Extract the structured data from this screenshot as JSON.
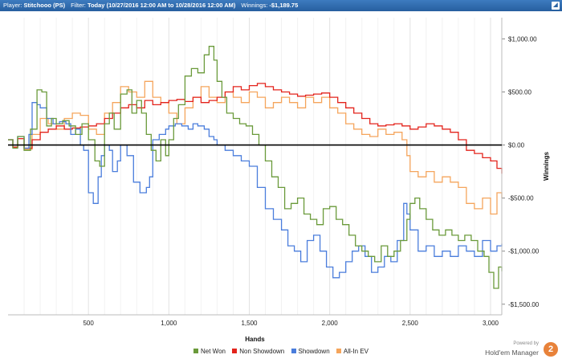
{
  "header": {
    "player_label": "Player:",
    "player_value": "Stitchooo (PS)",
    "filter_label": "Filter:",
    "filter_value": "Today (10/27/2016 12:00 AM to 10/28/2016 12:00 AM)",
    "winnings_label": "Winnings:",
    "winnings_value": "-$1,189.75",
    "expand_glyph": "◢"
  },
  "brand": {
    "powered": "Powered by",
    "name": "Hold'em Manager",
    "logo_text": "2"
  },
  "chart_data": {
    "type": "line",
    "xlabel": "Hands",
    "ylabel": "Winnings",
    "xlim": [
      0,
      3070
    ],
    "ylim": [
      -1600,
      1200
    ],
    "x_ticks": [
      500,
      1000,
      1500,
      2000,
      2500,
      3000
    ],
    "x_tick_labels": [
      "500",
      "1,000",
      "1,500",
      "2,000",
      "2,500",
      "3,000"
    ],
    "y_ticks": [
      1000,
      500,
      0,
      -500,
      -1000,
      -1500
    ],
    "y_tick_labels": [
      "$1,000.00",
      "$500.00",
      "$0.00",
      "-$500.00",
      "-$1,000.00",
      "-$1,500.00"
    ],
    "grid": "vertical",
    "legend_position": "bottom",
    "series": [
      {
        "name": "Net Won",
        "color": "#6a9a3a",
        "x": [
          0,
          30,
          60,
          100,
          140,
          180,
          210,
          240,
          270,
          300,
          340,
          380,
          420,
          460,
          500,
          540,
          570,
          600,
          630,
          660,
          700,
          740,
          770,
          800,
          830,
          860,
          890,
          920,
          950,
          980,
          1000,
          1030,
          1060,
          1100,
          1140,
          1180,
          1220,
          1250,
          1280,
          1300,
          1330,
          1360,
          1400,
          1440,
          1480,
          1520,
          1560,
          1600,
          1640,
          1680,
          1720,
          1760,
          1800,
          1840,
          1880,
          1920,
          1960,
          2000,
          2040,
          2080,
          2120,
          2160,
          2200,
          2240,
          2280,
          2320,
          2360,
          2400,
          2440,
          2480,
          2500,
          2530,
          2560,
          2600,
          2640,
          2680,
          2720,
          2760,
          2800,
          2840,
          2880,
          2920,
          2960,
          2990,
          3020,
          3050,
          3070
        ],
        "y": [
          50,
          -30,
          80,
          -50,
          150,
          520,
          500,
          180,
          250,
          200,
          230,
          180,
          100,
          200,
          50,
          -150,
          -200,
          200,
          300,
          150,
          480,
          520,
          300,
          420,
          300,
          100,
          -50,
          -150,
          50,
          -100,
          50,
          250,
          380,
          650,
          720,
          680,
          850,
          930,
          800,
          600,
          450,
          300,
          250,
          200,
          180,
          100,
          0,
          -150,
          -300,
          -400,
          -600,
          -550,
          -500,
          -650,
          -700,
          -750,
          -600,
          -580,
          -700,
          -750,
          -850,
          -950,
          -1000,
          -1050,
          -1100,
          -950,
          -1050,
          -1000,
          -900,
          -700,
          -550,
          -500,
          -600,
          -700,
          -800,
          -850,
          -800,
          -850,
          -900,
          -850,
          -900,
          -1000,
          -1050,
          -1200,
          -1350,
          -1150,
          -1190
        ]
      },
      {
        "name": "Non Showdown",
        "color": "#e3231b",
        "x": [
          0,
          30,
          60,
          100,
          150,
          200,
          250,
          300,
          350,
          400,
          450,
          500,
          550,
          600,
          650,
          700,
          750,
          800,
          850,
          900,
          950,
          1000,
          1050,
          1100,
          1150,
          1200,
          1250,
          1300,
          1350,
          1400,
          1450,
          1500,
          1550,
          1600,
          1650,
          1700,
          1750,
          1800,
          1850,
          1900,
          1950,
          2000,
          2050,
          2100,
          2150,
          2200,
          2250,
          2300,
          2350,
          2400,
          2450,
          2500,
          2550,
          2600,
          2650,
          2700,
          2750,
          2800,
          2850,
          2900,
          2950,
          3000,
          3040,
          3070
        ],
        "y": [
          50,
          -20,
          60,
          -30,
          50,
          120,
          150,
          180,
          150,
          160,
          170,
          180,
          200,
          250,
          300,
          350,
          380,
          350,
          420,
          380,
          400,
          420,
          430,
          410,
          450,
          400,
          420,
          450,
          500,
          550,
          520,
          560,
          580,
          550,
          520,
          500,
          480,
          460,
          470,
          480,
          490,
          450,
          400,
          350,
          300,
          250,
          200,
          180,
          190,
          200,
          180,
          150,
          170,
          200,
          180,
          150,
          120,
          50,
          -50,
          -80,
          -120,
          -150,
          -220,
          -270
        ]
      },
      {
        "name": "Showdown",
        "color": "#4a7ddc",
        "x": [
          0,
          30,
          60,
          100,
          130,
          150,
          180,
          200,
          240,
          280,
          320,
          360,
          390,
          420,
          450,
          470,
          500,
          530,
          560,
          580,
          600,
          630,
          650,
          680,
          700,
          740,
          780,
          820,
          860,
          880,
          900,
          940,
          980,
          1000,
          1040,
          1080,
          1120,
          1150,
          1180,
          1220,
          1250,
          1280,
          1300,
          1350,
          1400,
          1450,
          1500,
          1550,
          1600,
          1650,
          1700,
          1740,
          1780,
          1820,
          1860,
          1900,
          1940,
          1980,
          2020,
          2060,
          2100,
          2140,
          2180,
          2220,
          2260,
          2300,
          2340,
          2380,
          2420,
          2460,
          2480,
          2500,
          2550,
          2600,
          2650,
          2700,
          2750,
          2800,
          2850,
          2900,
          2950,
          3000,
          3040,
          3070
        ],
        "y": [
          50,
          0,
          80,
          -30,
          100,
          400,
          380,
          350,
          250,
          200,
          220,
          200,
          100,
          150,
          0,
          -50,
          -450,
          -550,
          -300,
          -100,
          0,
          -50,
          -250,
          -150,
          0,
          -100,
          -350,
          -450,
          -400,
          -300,
          50,
          100,
          150,
          180,
          200,
          180,
          150,
          200,
          180,
          150,
          80,
          50,
          0,
          -50,
          -100,
          -150,
          -200,
          -400,
          -600,
          -700,
          -800,
          -950,
          -1000,
          -1100,
          -900,
          -850,
          -1000,
          -1150,
          -1250,
          -1200,
          -1100,
          -1000,
          -950,
          -1050,
          -1200,
          -1150,
          -1050,
          -1100,
          -900,
          -550,
          -650,
          -800,
          -1000,
          -950,
          -1050,
          -1000,
          -1050,
          -950,
          -1000,
          -1050,
          -900,
          -1000,
          -950,
          -930
        ]
      },
      {
        "name": "All-In EV",
        "color": "#f5a55c",
        "x": [
          0,
          30,
          60,
          100,
          150,
          200,
          250,
          300,
          350,
          400,
          450,
          500,
          550,
          600,
          650,
          700,
          750,
          800,
          850,
          900,
          950,
          1000,
          1050,
          1100,
          1150,
          1200,
          1250,
          1300,
          1350,
          1400,
          1450,
          1500,
          1550,
          1600,
          1650,
          1700,
          1750,
          1800,
          1850,
          1900,
          1950,
          2000,
          2050,
          2100,
          2150,
          2200,
          2250,
          2300,
          2350,
          2400,
          2450,
          2480,
          2500,
          2550,
          2600,
          2650,
          2700,
          2750,
          2800,
          2850,
          2900,
          2950,
          3000,
          3040,
          3070
        ],
        "y": [
          50,
          -20,
          60,
          -40,
          100,
          250,
          200,
          150,
          250,
          300,
          280,
          150,
          100,
          300,
          400,
          550,
          500,
          450,
          600,
          450,
          400,
          300,
          200,
          350,
          450,
          550,
          450,
          400,
          500,
          450,
          400,
          500,
          450,
          350,
          400,
          450,
          400,
          350,
          450,
          400,
          450,
          350,
          300,
          200,
          150,
          100,
          80,
          150,
          100,
          120,
          50,
          -100,
          -250,
          -300,
          -250,
          -350,
          -300,
          -350,
          -400,
          -550,
          -600,
          -500,
          -650,
          -450,
          -500
        ]
      }
    ]
  }
}
